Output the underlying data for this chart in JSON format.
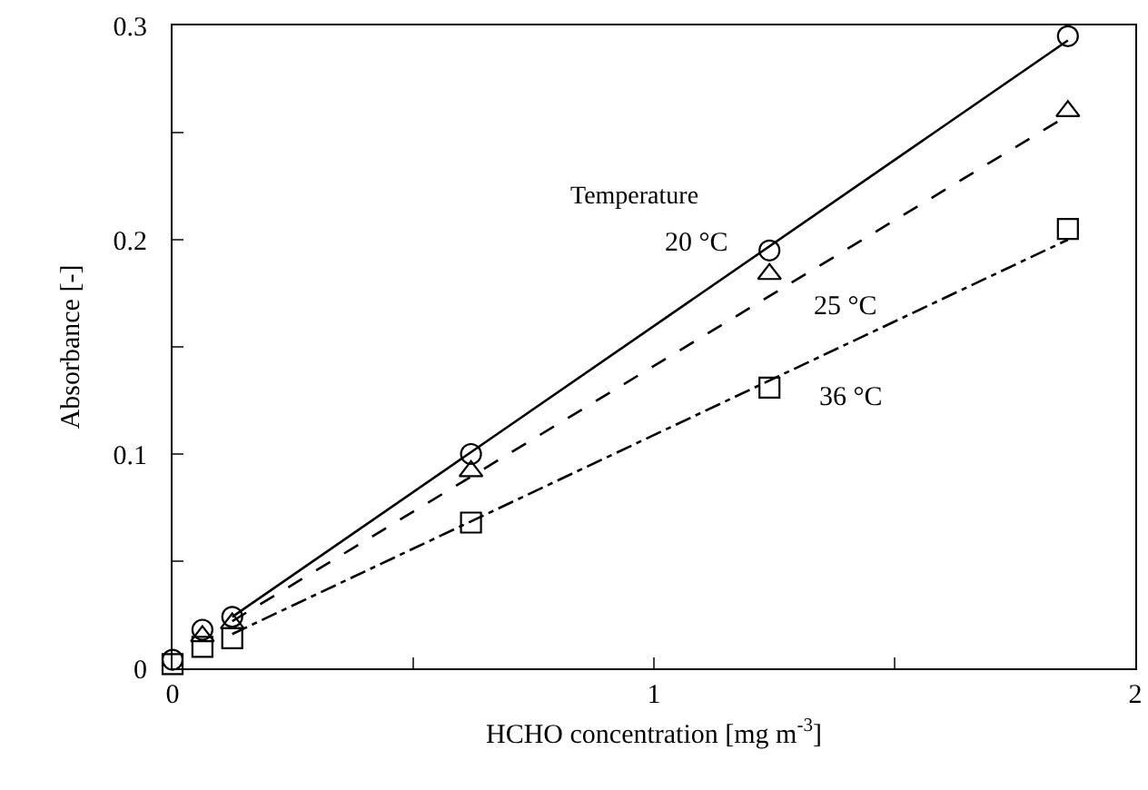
{
  "chart_data": {
    "type": "scatter",
    "xlabel": "HCHO concentration [mg m$^{-3}$]",
    "ylabel": "Absorbance [-]",
    "xlim": [
      0,
      2
    ],
    "xticks": [
      0,
      {
        "value": 0.5,
        "label": null
      },
      1,
      {
        "value": 1.5,
        "label": null
      },
      2
    ],
    "ylim": [
      0,
      0.3
    ],
    "yticks": [
      0,
      {
        "value": 0.05,
        "label": null
      },
      0.1,
      {
        "value": 0.15,
        "label": null
      },
      0.2,
      {
        "value": 0.25,
        "label": null
      },
      0.3
    ],
    "series": [
      {
        "type": "line",
        "line_style": "solid",
        "color": "#000000",
        "x": [
          0.124,
          1.86
        ],
        "values": [
          0.024,
          0.293
        ]
      },
      {
        "type": "line",
        "line_style": "dashed",
        "color": "#000000",
        "x": [
          0.124,
          1.86
        ],
        "values": [
          0.022,
          0.258
        ]
      },
      {
        "type": "line",
        "line_style": "dashdot",
        "color": "#000000",
        "x": [
          0.124,
          1.86
        ],
        "values": [
          0.016,
          0.2
        ]
      },
      {
        "name": "20 °C",
        "marker": "circle",
        "color": "#000000",
        "x": [
          0,
          0.062,
          0.124,
          0.62,
          1.24,
          1.86
        ],
        "values": [
          0.004,
          0.018,
          0.024,
          0.1,
          0.195,
          0.295
        ]
      },
      {
        "name": "36 °C",
        "marker": "square",
        "color": "#000000",
        "x": [
          0,
          0.062,
          0.124,
          0.62,
          1.24,
          1.86
        ],
        "values": [
          0.002,
          0.01,
          0.014,
          0.068,
          0.131,
          0.205
        ]
      },
      {
        "name": "25 °C",
        "marker": "triangle",
        "color": "#000000",
        "x": [
          0.062,
          0.124,
          0.62,
          1.24,
          1.86
        ],
        "values": [
          0.015,
          0.021,
          0.092,
          0.184,
          0.26
        ]
      }
    ],
    "annotations": [
      "Temperature"
    ]
  }
}
